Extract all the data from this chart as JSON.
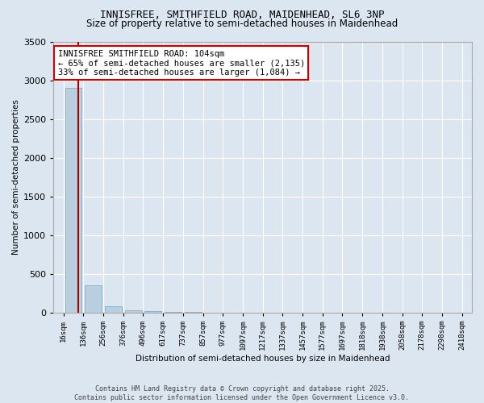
{
  "title_line1": "INNISFREE, SMITHFIELD ROAD, MAIDENHEAD, SL6 3NP",
  "title_line2": "Size of property relative to semi-detached houses in Maidenhead",
  "xlabel": "Distribution of semi-detached houses by size in Maidenhead",
  "ylabel": "Number of semi-detached properties",
  "annotation_title": "INNISFREE SMITHFIELD ROAD: 104sqm",
  "annotation_line2": "← 65% of semi-detached houses are smaller (2,135)",
  "annotation_line3": "33% of semi-detached houses are larger (1,084) →",
  "footer_line1": "Contains HM Land Registry data © Crown copyright and database right 2025.",
  "footer_line2": "Contains public sector information licensed under the Open Government Licence v3.0.",
  "bin_edges": [
    16,
    136,
    256,
    376,
    496,
    617,
    737,
    857,
    977,
    1097,
    1217,
    1337,
    1457,
    1577,
    1697,
    1818,
    1938,
    2058,
    2178,
    2298,
    2418
  ],
  "bar_heights": [
    2900,
    350,
    80,
    30,
    15,
    8,
    4,
    3,
    2,
    2,
    1,
    1,
    1,
    1,
    0,
    0,
    0,
    0,
    0,
    0
  ],
  "property_size": 104,
  "red_line_x": 104,
  "ylim": [
    0,
    3500
  ],
  "background_color": "#dce6f0",
  "grid_color": "#ffffff",
  "bar_color": "#b8cfe0",
  "bar_edge_color": "#7aa0bf",
  "annotation_box_facecolor": "#ffffff",
  "annotation_box_edgecolor": "#cc0000",
  "red_line_color": "#aa0000",
  "title_fontsize": 9,
  "subtitle_fontsize": 8.5,
  "ylabel_fontsize": 7.5,
  "xlabel_fontsize": 7.5,
  "xtick_fontsize": 6.5,
  "ytick_fontsize": 8,
  "annotation_fontsize": 7.5,
  "footer_fontsize": 6.0
}
